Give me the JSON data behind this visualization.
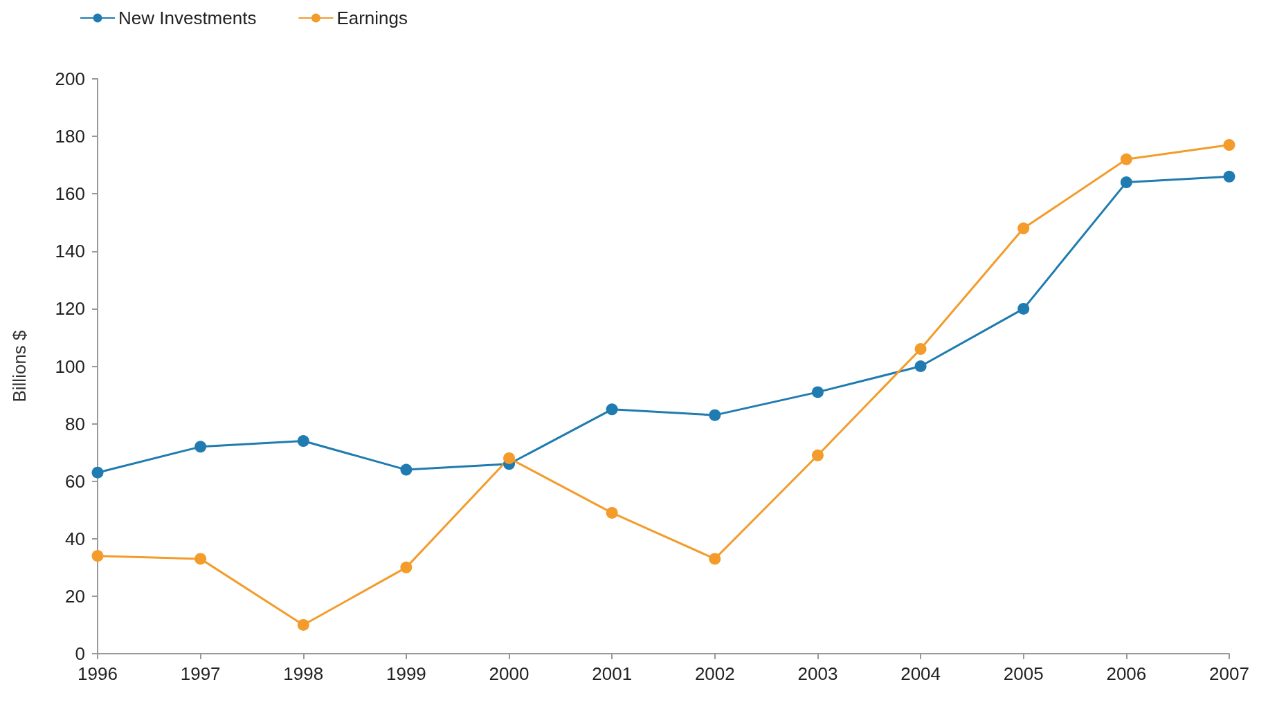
{
  "chart_data": {
    "type": "line",
    "ylabel": "Billions $",
    "categories": [
      "1996",
      "1997",
      "1998",
      "1999",
      "2000",
      "2001",
      "2002",
      "2003",
      "2004",
      "2005",
      "2006",
      "2007"
    ],
    "series": [
      {
        "name": "New Investments",
        "color": "#1f7bb0",
        "values": [
          63,
          72,
          74,
          64,
          66,
          85,
          83,
          91,
          100,
          120,
          164,
          166
        ]
      },
      {
        "name": "Earnings",
        "color": "#f39c2b",
        "values": [
          34,
          33,
          10,
          30,
          68,
          49,
          33,
          69,
          106,
          148,
          172,
          177
        ]
      }
    ],
    "ylim": [
      0,
      200
    ],
    "yticks": [
      0,
      20,
      40,
      60,
      80,
      100,
      120,
      140,
      160,
      180,
      200
    ],
    "grid": false,
    "legend": "top left",
    "marker": "circle",
    "line_style": "solid"
  }
}
